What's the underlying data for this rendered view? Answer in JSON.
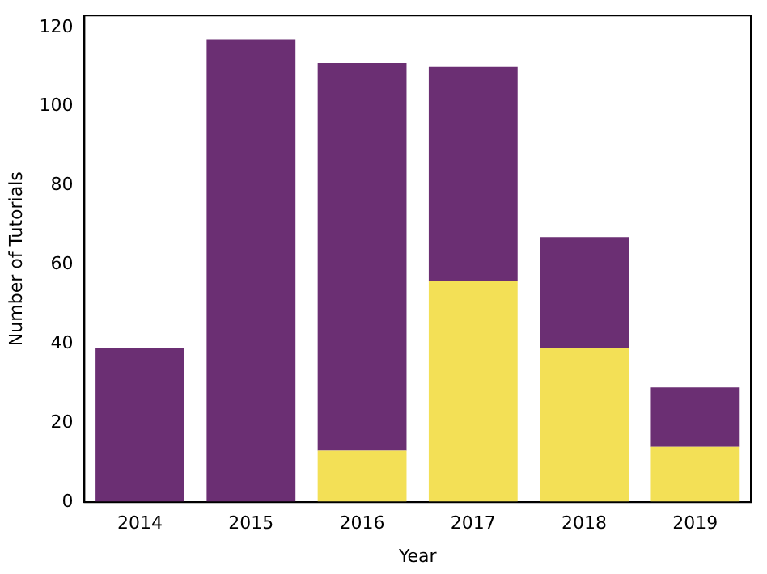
{
  "chart_data": {
    "type": "bar",
    "stacked": true,
    "xlabel": "Year",
    "ylabel": "Number of Tutorials",
    "categories": [
      "2014",
      "2015",
      "2016",
      "2017",
      "2018",
      "2019"
    ],
    "series": [
      {
        "color": "#f3e056",
        "values": [
          0,
          0,
          13,
          56,
          39,
          14
        ]
      },
      {
        "color": "#6b2f73",
        "values": [
          39,
          117,
          98,
          54,
          28,
          15
        ]
      }
    ],
    "ylim": [
      0,
      123
    ],
    "yticks": [
      0,
      20,
      40,
      60,
      80,
      100,
      120
    ],
    "grid": false,
    "legend": false
  }
}
